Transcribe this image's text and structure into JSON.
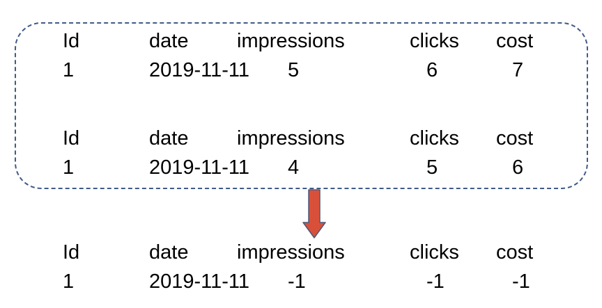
{
  "tables": [
    {
      "headers": [
        "Id",
        "date",
        "impressions",
        "clicks",
        "cost"
      ],
      "row": [
        "1",
        "2019-11-11",
        "5",
        "6",
        "7"
      ]
    },
    {
      "headers": [
        "Id",
        "date",
        "impressions",
        "clicks",
        "cost"
      ],
      "row": [
        "1",
        "2019-11-11",
        "4",
        "5",
        "6"
      ]
    },
    {
      "headers": [
        "Id",
        "date",
        "impressions",
        "clicks",
        "cost"
      ],
      "row": [
        "1",
        "2019-11-11",
        "-1",
        "-1",
        "-1"
      ]
    }
  ],
  "colors": {
    "frame_border": "#3f5a86",
    "arrow_fill": "#d9503a",
    "arrow_stroke": "#4a5a7a"
  }
}
